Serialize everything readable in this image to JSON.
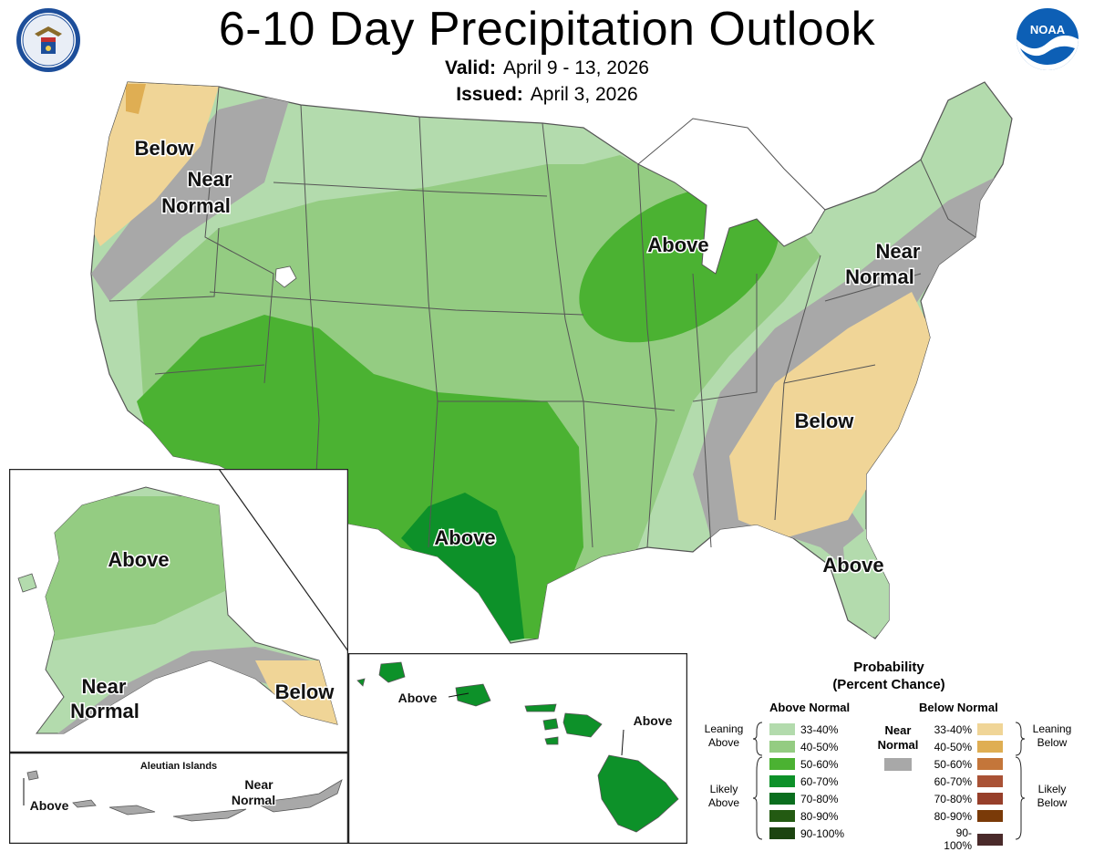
{
  "header": {
    "title": "6-10 Day Precipitation Outlook",
    "valid_label": "Valid:",
    "valid_value": "April 9 - 13, 2026",
    "issued_label": "Issued:",
    "issued_value": "April 3, 2026"
  },
  "logos": {
    "left_seal": "department-of-commerce-seal",
    "right_seal": "noaa-logo",
    "noaa_text": "NOAA"
  },
  "map_labels": {
    "pacific_nw_below": "Below",
    "pacific_nw_near_1": "Near",
    "pacific_nw_near_2": "Normal",
    "midwest_above": "Above",
    "northeast_near_1": "Near",
    "northeast_near_2": "Normal",
    "southeast_below": "Below",
    "texas_above": "Above",
    "florida_above": "Above",
    "alaska_above": "Above",
    "alaska_near_1": "Near",
    "alaska_near_2": "Normal",
    "alaska_below": "Below",
    "aleutian_title": "Aleutian Islands",
    "aleutian_above": "Above",
    "aleutian_near_1": "Near",
    "aleutian_near_2": "Normal",
    "hawaii_above_1": "Above",
    "hawaii_above_2": "Above"
  },
  "colors": {
    "above": [
      "#b3dbad",
      "#94cc82",
      "#4bb232",
      "#0d9129",
      "#0a6e1e",
      "#235a12",
      "#1c4410"
    ],
    "below": [
      "#f0d597",
      "#dfae53",
      "#c4763a",
      "#a95235",
      "#973f2a",
      "#7a3a08",
      "#4a2a2a"
    ],
    "near_normal": "#a8a8a8",
    "state_line": "#555555"
  },
  "legend": {
    "title_line1": "Probability",
    "title_line2": "(Percent Chance)",
    "above_header": "Above Normal",
    "below_header": "Below Normal",
    "near_line1": "Near",
    "near_line2": "Normal",
    "ranges": [
      "33-40%",
      "40-50%",
      "50-60%",
      "60-70%",
      "70-80%",
      "80-90%",
      "90-100%"
    ],
    "leaning_above_1": "Leaning",
    "leaning_above_2": "Above",
    "likely_above_1": "Likely",
    "likely_above_2": "Above",
    "leaning_below_1": "Leaning",
    "leaning_below_2": "Below",
    "likely_below_1": "Likely",
    "likely_below_2": "Below"
  }
}
